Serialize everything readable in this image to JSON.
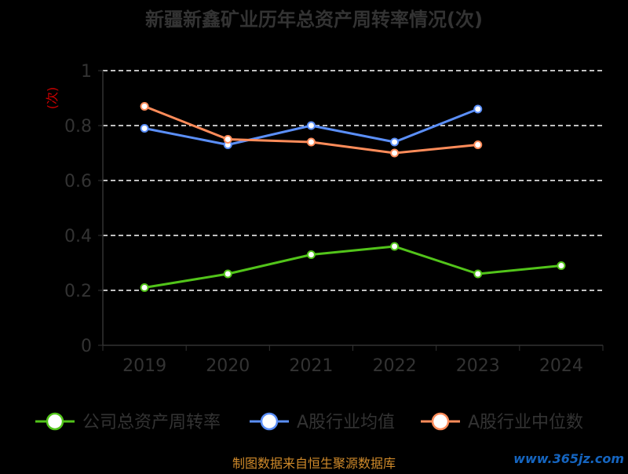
{
  "chart_data": {
    "type": "line",
    "title": "新疆新鑫矿业历年总资产周转率情况(次)",
    "ylabel": "(次)",
    "xlabel": "",
    "categories": [
      "2019",
      "2020",
      "2021",
      "2022",
      "2023",
      "2024"
    ],
    "ylim": [
      0,
      1
    ],
    "yticks": [
      "0",
      "0.2",
      "0.4",
      "0.6",
      "0.8",
      "1"
    ],
    "grid": true,
    "legend_position": "bottom",
    "series": [
      {
        "name": "公司总资产周转率",
        "color": "#52c41a",
        "values": [
          0.21,
          0.26,
          0.33,
          0.36,
          0.26,
          0.29
        ]
      },
      {
        "name": "A股行业均值",
        "color": "#5b8ff9",
        "values": [
          0.79,
          0.73,
          0.8,
          0.74,
          0.86,
          null
        ]
      },
      {
        "name": "A股行业中位数",
        "color": "#ff8c5a",
        "values": [
          0.87,
          0.75,
          0.74,
          0.7,
          0.73,
          null
        ]
      }
    ]
  },
  "footer": {
    "source": "制图数据来自恒生聚源数据库",
    "watermark": "www.365jz.com"
  }
}
